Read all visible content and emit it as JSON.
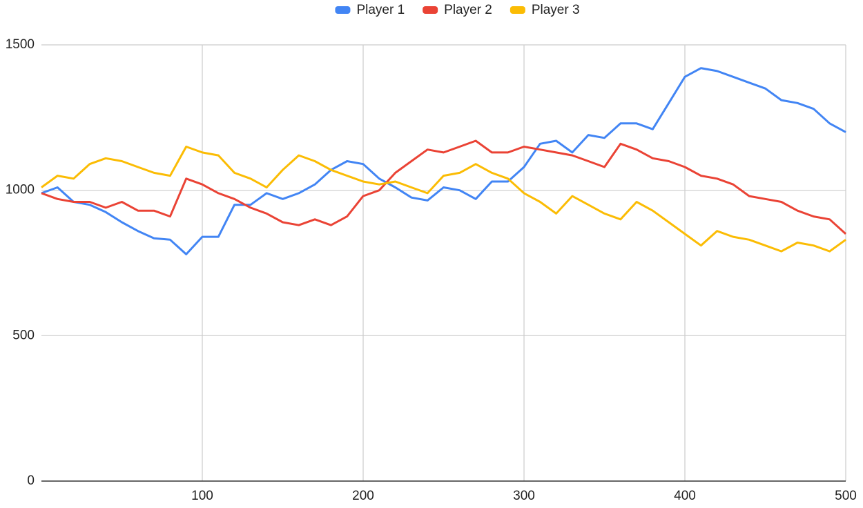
{
  "chart_data": {
    "type": "line",
    "x": [
      0,
      10,
      20,
      30,
      40,
      50,
      60,
      70,
      80,
      90,
      100,
      110,
      120,
      130,
      140,
      150,
      160,
      170,
      180,
      190,
      200,
      210,
      220,
      230,
      240,
      250,
      260,
      270,
      280,
      290,
      300,
      310,
      320,
      330,
      340,
      350,
      360,
      370,
      380,
      390,
      400,
      410,
      420,
      430,
      440,
      450,
      460,
      470,
      480,
      490,
      500
    ],
    "series": [
      {
        "name": "Player 1",
        "color": "#4285f4",
        "values": [
          990,
          1010,
          960,
          950,
          925,
          890,
          860,
          835,
          830,
          780,
          840,
          840,
          950,
          950,
          990,
          970,
          990,
          1020,
          1070,
          1100,
          1090,
          1040,
          1010,
          975,
          965,
          1010,
          1000,
          970,
          1030,
          1030,
          1080,
          1160,
          1170,
          1130,
          1190,
          1180,
          1230,
          1230,
          1210,
          1300,
          1390,
          1420,
          1410,
          1390,
          1370,
          1350,
          1310,
          1300,
          1280,
          1230,
          1200
        ]
      },
      {
        "name": "Player 2",
        "color": "#ea4335",
        "values": [
          990,
          970,
          960,
          960,
          940,
          960,
          930,
          930,
          910,
          1040,
          1020,
          990,
          970,
          940,
          920,
          890,
          880,
          900,
          880,
          910,
          980,
          1000,
          1060,
          1100,
          1140,
          1130,
          1150,
          1170,
          1130,
          1130,
          1150,
          1140,
          1130,
          1120,
          1100,
          1080,
          1160,
          1140,
          1110,
          1100,
          1080,
          1050,
          1040,
          1020,
          980,
          970,
          960,
          930,
          910,
          900,
          850
        ]
      },
      {
        "name": "Player 3",
        "color": "#fbbc04",
        "values": [
          1010,
          1050,
          1040,
          1090,
          1110,
          1100,
          1080,
          1060,
          1050,
          1150,
          1130,
          1120,
          1060,
          1040,
          1010,
          1070,
          1120,
          1100,
          1070,
          1050,
          1030,
          1020,
          1030,
          1010,
          990,
          1050,
          1060,
          1090,
          1060,
          1040,
          990,
          960,
          920,
          980,
          950,
          920,
          900,
          960,
          930,
          890,
          850,
          810,
          860,
          840,
          830,
          810,
          790,
          820,
          810,
          790,
          830
        ]
      }
    ],
    "xlim": [
      0,
      500
    ],
    "xticks": [
      100,
      200,
      300,
      400,
      500
    ],
    "ylim": [
      0,
      1500
    ],
    "yticks": [
      0,
      500,
      1000,
      1500
    ],
    "grid": true,
    "legend": "top"
  }
}
